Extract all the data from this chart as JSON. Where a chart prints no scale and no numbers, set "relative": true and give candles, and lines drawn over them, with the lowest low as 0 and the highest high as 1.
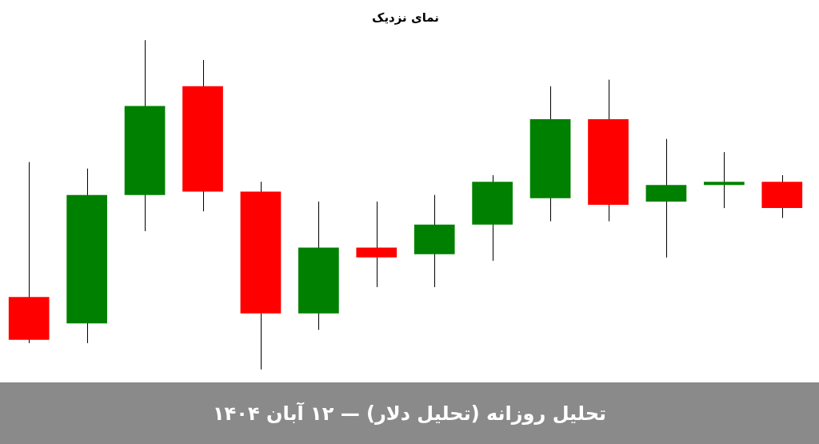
{
  "chart_data": {
    "type": "candlestick",
    "title": "نمای نزدیک",
    "relative": true,
    "categories": [
      null,
      null,
      null,
      null,
      null,
      null,
      null,
      null,
      null,
      null,
      null,
      null,
      null,
      null
    ],
    "ohlc": [
      [
        0.22,
        0.63,
        0.08,
        0.09
      ],
      [
        0.14,
        0.61,
        0.08,
        0.53
      ],
      [
        0.53,
        1,
        0.42,
        0.8
      ],
      [
        0.86,
        0.94,
        0.48,
        0.54
      ],
      [
        0.54,
        0.57,
        0,
        0.17
      ],
      [
        0.17,
        0.51,
        0.12,
        0.37
      ],
      [
        0.37,
        0.51,
        0.25,
        0.34
      ],
      [
        0.35,
        0.53,
        0.25,
        0.44
      ],
      [
        0.44,
        0.59,
        0.33,
        0.57
      ],
      [
        0.52,
        0.86,
        0.45,
        0.76
      ],
      [
        0.76,
        0.88,
        0.45,
        0.5
      ],
      [
        0.51,
        0.7,
        0.34,
        0.56
      ],
      [
        0.56,
        0.66,
        0.49,
        0.57
      ],
      [
        0.57,
        0.59,
        0.46,
        0.49
      ]
    ],
    "colors": [
      "#ff0000",
      "#008000",
      "#008000",
      "#ff0000",
      "#ff0000",
      "#008000",
      "#ff0000",
      "#008000",
      "#008000",
      "#008000",
      "#ff0000",
      "#008000",
      "#008000",
      "#ff0000"
    ],
    "annotations": [
      "تحلیل روزانه (تحلیل دلار) — ۱۲ آبان ۱۴۰۴"
    ]
  }
}
